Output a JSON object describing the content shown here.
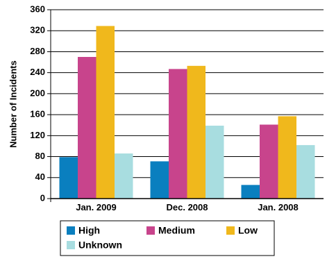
{
  "chart_data": {
    "type": "bar",
    "title": "",
    "xlabel": "",
    "ylabel": "Number of Incidents",
    "ylim": [
      0,
      360
    ],
    "yticks": [
      0,
      40,
      80,
      120,
      160,
      200,
      240,
      280,
      320,
      360
    ],
    "grid": true,
    "legend_position": "bottom",
    "categories": [
      "Jan. 2009",
      "Dec. 2008",
      "Jan. 2008"
    ],
    "series": [
      {
        "name": "High",
        "color": "#0a7fbf",
        "values": [
          79,
          71,
          26
        ]
      },
      {
        "name": "Medium",
        "color": "#c8448c",
        "values": [
          270,
          247,
          141
        ]
      },
      {
        "name": "Low",
        "color": "#f0b81c",
        "values": [
          329,
          253,
          157
        ]
      },
      {
        "name": "Unknown",
        "color": "#a8dde0",
        "values": [
          86,
          139,
          102
        ]
      }
    ]
  }
}
